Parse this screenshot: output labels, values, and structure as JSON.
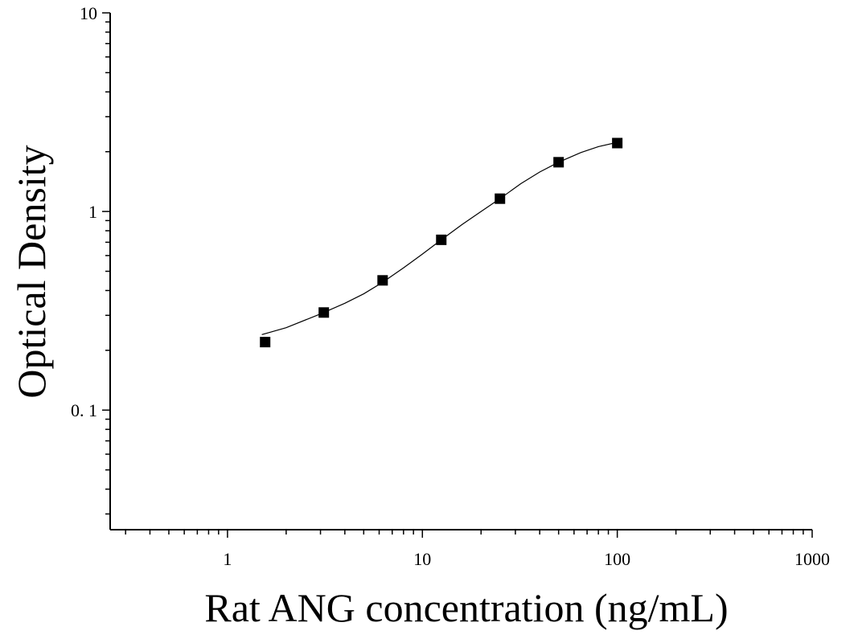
{
  "chart_data": {
    "type": "scatter",
    "title": "",
    "xlabel": "Rat ANG concentration (ng/mL)",
    "ylabel": "Optical Density",
    "x_scale": "log",
    "y_scale": "log",
    "xlim": [
      0.25,
      1000
    ],
    "ylim": [
      0.025,
      10
    ],
    "x_ticks": [
      {
        "value": 1,
        "label": "1"
      },
      {
        "value": 10,
        "label": "10"
      },
      {
        "value": 100,
        "label": "100"
      },
      {
        "value": 1000,
        "label": "1000"
      }
    ],
    "y_ticks": [
      {
        "value": 10,
        "label": "10"
      },
      {
        "value": 1,
        "label": "1"
      },
      {
        "value": 0.1,
        "label": "0. 1"
      }
    ],
    "grid": false,
    "legend": "none",
    "series": [
      {
        "marker": "square",
        "color": "#000000",
        "points": [
          {
            "x": 1.56,
            "y": 0.22
          },
          {
            "x": 3.12,
            "y": 0.31
          },
          {
            "x": 6.25,
            "y": 0.45
          },
          {
            "x": 12.5,
            "y": 0.72
          },
          {
            "x": 25,
            "y": 1.16
          },
          {
            "x": 50,
            "y": 1.77
          },
          {
            "x": 100,
            "y": 2.21
          }
        ]
      }
    ],
    "fit_curve": {
      "color": "#000000",
      "points": [
        {
          "x": 1.5,
          "y": 0.24
        },
        {
          "x": 2,
          "y": 0.26
        },
        {
          "x": 3,
          "y": 0.305
        },
        {
          "x": 4,
          "y": 0.345
        },
        {
          "x": 5,
          "y": 0.385
        },
        {
          "x": 6.25,
          "y": 0.44
        },
        {
          "x": 8,
          "y": 0.52
        },
        {
          "x": 10,
          "y": 0.61
        },
        {
          "x": 12.5,
          "y": 0.72
        },
        {
          "x": 16,
          "y": 0.86
        },
        {
          "x": 20,
          "y": 1.0
        },
        {
          "x": 25,
          "y": 1.16
        },
        {
          "x": 32,
          "y": 1.38
        },
        {
          "x": 40,
          "y": 1.58
        },
        {
          "x": 50,
          "y": 1.77
        },
        {
          "x": 65,
          "y": 1.98
        },
        {
          "x": 80,
          "y": 2.12
        },
        {
          "x": 100,
          "y": 2.23
        }
      ]
    }
  }
}
